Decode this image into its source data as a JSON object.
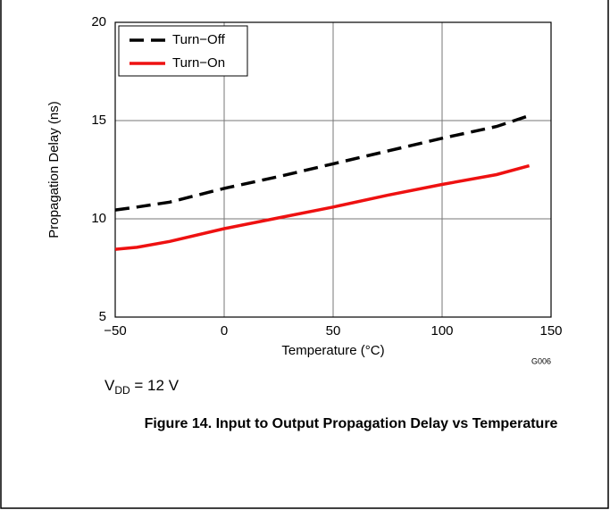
{
  "chart_data": {
    "type": "line",
    "xlabel": "Temperature (°C)",
    "ylabel": "Propagation Delay (ns)",
    "x": [
      -50,
      -40,
      -25,
      0,
      25,
      50,
      75,
      100,
      125,
      140
    ],
    "series": [
      {
        "name": "Turn−Off",
        "color": "#000000",
        "dash": "dashed",
        "values": [
          10.45,
          10.6,
          10.85,
          11.55,
          12.15,
          12.8,
          13.45,
          14.1,
          14.7,
          15.25
        ]
      },
      {
        "name": "Turn−On",
        "color": "#ee1111",
        "dash": "solid",
        "values": [
          8.45,
          8.55,
          8.85,
          9.5,
          10.05,
          10.6,
          11.2,
          11.75,
          12.25,
          12.7
        ]
      }
    ],
    "xlim": [
      -50,
      150
    ],
    "ylim": [
      5,
      20
    ],
    "xticks": [
      {
        "value": -50,
        "label": "−50"
      },
      0,
      50,
      100,
      150
    ],
    "yticks": [
      5,
      10,
      15,
      20
    ],
    "grid": true,
    "legend": "upper-left",
    "annotation": {
      "main": "V",
      "sub": "DD",
      "rest": " = 12 V"
    },
    "code": "G006",
    "caption": "Figure 14. Input to Output Propagation Delay vs Temperature"
  }
}
